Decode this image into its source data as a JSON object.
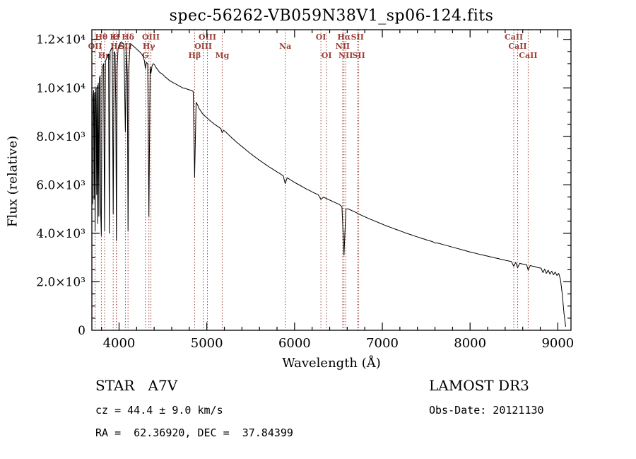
{
  "chart_data": {
    "type": "line",
    "title": "spec-56262-VB059N38V1_sp06-124.fits",
    "xlabel": "Wavelength (Å)",
    "ylabel": "Flux (relative)",
    "xlim": [
      3690,
      9150
    ],
    "ylim": [
      0,
      12400
    ],
    "grid": false,
    "legend": "none",
    "line_color": "#000000",
    "marker_color": "#9c4038",
    "xticks": {
      "values": [
        4000,
        5000,
        6000,
        7000,
        8000,
        9000
      ],
      "labels": [
        "4000",
        "5000",
        "6000",
        "7000",
        "8000",
        "9000"
      ]
    },
    "yticks": {
      "values": [
        0,
        2000,
        4000,
        6000,
        8000,
        10000,
        12000
      ],
      "labels": [
        "0",
        "2.0×10³",
        "4.0×10³",
        "6.0×10³",
        "8.0×10³",
        "1.0×10⁴",
        "1.2×10⁴"
      ]
    },
    "x_minor_step": 200,
    "y_minor_step": 500,
    "spectral_lines": [
      {
        "wavelength": 3727,
        "label": "OII",
        "row": 2
      },
      {
        "wavelength": 3798,
        "label": "Hθ",
        "row": 1
      },
      {
        "wavelength": 3835,
        "label": "Hη",
        "row": 3
      },
      {
        "wavelength": 3933,
        "label": "K",
        "row": 1
      },
      {
        "wavelength": 3968,
        "label": "H",
        "row": 1
      },
      {
        "wavelength": 3970,
        "label": "Hε",
        "row": 2
      },
      {
        "wavelength": 4072,
        "label": "SII",
        "row": 2
      },
      {
        "wavelength": 4102,
        "label": "Hδ",
        "row": 1
      },
      {
        "wavelength": 4300,
        "label": "G",
        "row": 3
      },
      {
        "wavelength": 4340,
        "label": "Hγ",
        "row": 2
      },
      {
        "wavelength": 4363,
        "label": "OIII",
        "row": 1
      },
      {
        "wavelength": 4861,
        "label": "Hβ",
        "row": 3
      },
      {
        "wavelength": 4959,
        "label": "OIII",
        "row": 2
      },
      {
        "wavelength": 5007,
        "label": "OIII",
        "row": 1
      },
      {
        "wavelength": 5175,
        "label": "Mg",
        "row": 3
      },
      {
        "wavelength": 5894,
        "label": "Na",
        "row": 2
      },
      {
        "wavelength": 6300,
        "label": "OI",
        "row": 1
      },
      {
        "wavelength": 6365,
        "label": "OI",
        "row": 3
      },
      {
        "wavelength": 6548,
        "label": "NII",
        "row": 2
      },
      {
        "wavelength": 6563,
        "label": "Hα",
        "row": 1
      },
      {
        "wavelength": 6583,
        "label": "NII",
        "row": 3
      },
      {
        "wavelength": 6716,
        "label": "SII",
        "row": 1
      },
      {
        "wavelength": 6731,
        "label": "SII",
        "row": 3
      },
      {
        "wavelength": 8498,
        "label": "CaII",
        "row": 1
      },
      {
        "wavelength": 8542,
        "label": "CaII",
        "row": 2
      },
      {
        "wavelength": 8662,
        "label": "CaII",
        "row": 3
      }
    ],
    "series": [
      {
        "name": "spectrum",
        "points": [
          [
            3700,
            5200
          ],
          [
            3704,
            9600
          ],
          [
            3710,
            9900
          ],
          [
            3716,
            5400
          ],
          [
            3721,
            9800
          ],
          [
            3727,
            4100
          ],
          [
            3732,
            9700
          ],
          [
            3738,
            10000
          ],
          [
            3745,
            5600
          ],
          [
            3750,
            10100
          ],
          [
            3757,
            4400
          ],
          [
            3763,
            10200
          ],
          [
            3770,
            4700
          ],
          [
            3777,
            10400
          ],
          [
            3784,
            10500
          ],
          [
            3790,
            5000
          ],
          [
            3798,
            3900
          ],
          [
            3806,
            10700
          ],
          [
            3815,
            10900
          ],
          [
            3824,
            11000
          ],
          [
            3835,
            4100
          ],
          [
            3845,
            11100
          ],
          [
            3856,
            11200
          ],
          [
            3868,
            11300
          ],
          [
            3880,
            11400
          ],
          [
            3889,
            4000
          ],
          [
            3898,
            11500
          ],
          [
            3910,
            11600
          ],
          [
            3922,
            11650
          ],
          [
            3933,
            4800
          ],
          [
            3944,
            11500
          ],
          [
            3955,
            11400
          ],
          [
            3963,
            9000
          ],
          [
            3970,
            3700
          ],
          [
            3978,
            10800
          ],
          [
            3988,
            11600
          ],
          [
            4000,
            11750
          ],
          [
            4012,
            11850
          ],
          [
            4026,
            11900
          ],
          [
            4040,
            11850
          ],
          [
            4055,
            11800
          ],
          [
            4072,
            8200
          ],
          [
            4085,
            11600
          ],
          [
            4094,
            10500
          ],
          [
            4102,
            4100
          ],
          [
            4112,
            10800
          ],
          [
            4124,
            11700
          ],
          [
            4140,
            11800
          ],
          [
            4155,
            11750
          ],
          [
            4170,
            11700
          ],
          [
            4186,
            11650
          ],
          [
            4200,
            11600
          ],
          [
            4215,
            11550
          ],
          [
            4230,
            11500
          ],
          [
            4245,
            11450
          ],
          [
            4260,
            11380
          ],
          [
            4275,
            11300
          ],
          [
            4290,
            11100
          ],
          [
            4300,
            10800
          ],
          [
            4312,
            11050
          ],
          [
            4326,
            11000
          ],
          [
            4340,
            4700
          ],
          [
            4354,
            10850
          ],
          [
            4363,
            10600
          ],
          [
            4375,
            10900
          ],
          [
            4390,
            11000
          ],
          [
            4405,
            10950
          ],
          [
            4420,
            10850
          ],
          [
            4440,
            10750
          ],
          [
            4460,
            10650
          ],
          [
            4480,
            10600
          ],
          [
            4500,
            10550
          ],
          [
            4525,
            10450
          ],
          [
            4550,
            10380
          ],
          [
            4575,
            10300
          ],
          [
            4600,
            10250
          ],
          [
            4625,
            10200
          ],
          [
            4650,
            10150
          ],
          [
            4675,
            10100
          ],
          [
            4700,
            10050
          ],
          [
            4725,
            10000
          ],
          [
            4750,
            9980
          ],
          [
            4775,
            9950
          ],
          [
            4800,
            9920
          ],
          [
            4825,
            9900
          ],
          [
            4845,
            9850
          ],
          [
            4861,
            6300
          ],
          [
            4878,
            9400
          ],
          [
            4895,
            9300
          ],
          [
            4912,
            9150
          ],
          [
            4930,
            9050
          ],
          [
            4948,
            8950
          ],
          [
            4966,
            8880
          ],
          [
            4984,
            8820
          ],
          [
            5002,
            8760
          ],
          [
            5020,
            8700
          ],
          [
            5040,
            8640
          ],
          [
            5060,
            8580
          ],
          [
            5080,
            8520
          ],
          [
            5100,
            8470
          ],
          [
            5120,
            8420
          ],
          [
            5140,
            8370
          ],
          [
            5160,
            8320
          ],
          [
            5175,
            8150
          ],
          [
            5192,
            8250
          ],
          [
            5210,
            8200
          ],
          [
            5230,
            8130
          ],
          [
            5250,
            8060
          ],
          [
            5270,
            7990
          ],
          [
            5290,
            7920
          ],
          [
            5310,
            7860
          ],
          [
            5330,
            7790
          ],
          [
            5350,
            7730
          ],
          [
            5370,
            7670
          ],
          [
            5390,
            7610
          ],
          [
            5410,
            7550
          ],
          [
            5430,
            7490
          ],
          [
            5450,
            7430
          ],
          [
            5470,
            7370
          ],
          [
            5490,
            7310
          ],
          [
            5510,
            7260
          ],
          [
            5530,
            7200
          ],
          [
            5550,
            7150
          ],
          [
            5570,
            7090
          ],
          [
            5590,
            7040
          ],
          [
            5610,
            6990
          ],
          [
            5630,
            6940
          ],
          [
            5650,
            6890
          ],
          [
            5670,
            6840
          ],
          [
            5690,
            6790
          ],
          [
            5710,
            6740
          ],
          [
            5730,
            6700
          ],
          [
            5750,
            6650
          ],
          [
            5770,
            6600
          ],
          [
            5790,
            6560
          ],
          [
            5810,
            6510
          ],
          [
            5830,
            6470
          ],
          [
            5850,
            6420
          ],
          [
            5870,
            6380
          ],
          [
            5893,
            6050
          ],
          [
            5915,
            6290
          ],
          [
            5935,
            6250
          ],
          [
            5955,
            6200
          ],
          [
            5975,
            6160
          ],
          [
            6000,
            6100
          ],
          [
            6030,
            6040
          ],
          [
            6060,
            5980
          ],
          [
            6090,
            5920
          ],
          [
            6120,
            5860
          ],
          [
            6150,
            5800
          ],
          [
            6180,
            5750
          ],
          [
            6210,
            5690
          ],
          [
            6240,
            5640
          ],
          [
            6270,
            5590
          ],
          [
            6300,
            5400
          ],
          [
            6330,
            5490
          ],
          [
            6360,
            5440
          ],
          [
            6390,
            5390
          ],
          [
            6420,
            5340
          ],
          [
            6450,
            5290
          ],
          [
            6480,
            5240
          ],
          [
            6510,
            5190
          ],
          [
            6540,
            5100
          ],
          [
            6563,
            3100
          ],
          [
            6585,
            5000
          ],
          [
            6610,
            5010
          ],
          [
            6640,
            4960
          ],
          [
            6670,
            4910
          ],
          [
            6700,
            4860
          ],
          [
            6730,
            4800
          ],
          [
            6760,
            4750
          ],
          [
            6790,
            4700
          ],
          [
            6820,
            4650
          ],
          [
            6850,
            4600
          ],
          [
            6880,
            4560
          ],
          [
            6910,
            4510
          ],
          [
            6940,
            4470
          ],
          [
            6970,
            4420
          ],
          [
            7000,
            4380
          ],
          [
            7030,
            4330
          ],
          [
            7060,
            4290
          ],
          [
            7090,
            4250
          ],
          [
            7120,
            4210
          ],
          [
            7150,
            4170
          ],
          [
            7180,
            4130
          ],
          [
            7210,
            4090
          ],
          [
            7240,
            4050
          ],
          [
            7270,
            4010
          ],
          [
            7300,
            3970
          ],
          [
            7330,
            3940
          ],
          [
            7360,
            3900
          ],
          [
            7390,
            3860
          ],
          [
            7420,
            3830
          ],
          [
            7450,
            3790
          ],
          [
            7480,
            3760
          ],
          [
            7510,
            3720
          ],
          [
            7540,
            3690
          ],
          [
            7570,
            3660
          ],
          [
            7600,
            3600
          ],
          [
            7630,
            3600
          ],
          [
            7660,
            3570
          ],
          [
            7690,
            3540
          ],
          [
            7720,
            3510
          ],
          [
            7750,
            3480
          ],
          [
            7780,
            3450
          ],
          [
            7810,
            3420
          ],
          [
            7840,
            3390
          ],
          [
            7870,
            3360
          ],
          [
            7900,
            3330
          ],
          [
            7930,
            3300
          ],
          [
            7960,
            3270
          ],
          [
            7990,
            3240
          ],
          [
            8020,
            3210
          ],
          [
            8050,
            3190
          ],
          [
            8080,
            3160
          ],
          [
            8110,
            3130
          ],
          [
            8140,
            3110
          ],
          [
            8170,
            3080
          ],
          [
            8200,
            3060
          ],
          [
            8230,
            3030
          ],
          [
            8260,
            3010
          ],
          [
            8290,
            2980
          ],
          [
            8320,
            2960
          ],
          [
            8350,
            2930
          ],
          [
            8380,
            2910
          ],
          [
            8410,
            2880
          ],
          [
            8440,
            2860
          ],
          [
            8470,
            2840
          ],
          [
            8498,
            2640
          ],
          [
            8520,
            2800
          ],
          [
            8542,
            2580
          ],
          [
            8565,
            2760
          ],
          [
            8590,
            2740
          ],
          [
            8620,
            2720
          ],
          [
            8645,
            2700
          ],
          [
            8662,
            2480
          ],
          [
            8685,
            2670
          ],
          [
            8710,
            2650
          ],
          [
            8735,
            2630
          ],
          [
            8760,
            2600
          ],
          [
            8785,
            2580
          ],
          [
            8810,
            2560
          ],
          [
            8830,
            2380
          ],
          [
            8850,
            2520
          ],
          [
            8870,
            2350
          ],
          [
            8890,
            2480
          ],
          [
            8910,
            2320
          ],
          [
            8930,
            2440
          ],
          [
            8950,
            2290
          ],
          [
            8970,
            2400
          ],
          [
            8990,
            2260
          ],
          [
            9010,
            2350
          ],
          [
            9030,
            2100
          ],
          [
            9050,
            1500
          ],
          [
            9070,
            700
          ],
          [
            9090,
            150
          ]
        ]
      }
    ]
  },
  "annotations": {
    "classification": "STAR   A7V",
    "cz": "cz = 44.4 ± 9.0 km/s",
    "radec": "RA =  62.36920, DEC =  37.84399",
    "survey": "LAMOST DR3",
    "obs_date": "Obs-Date: 20121130"
  }
}
